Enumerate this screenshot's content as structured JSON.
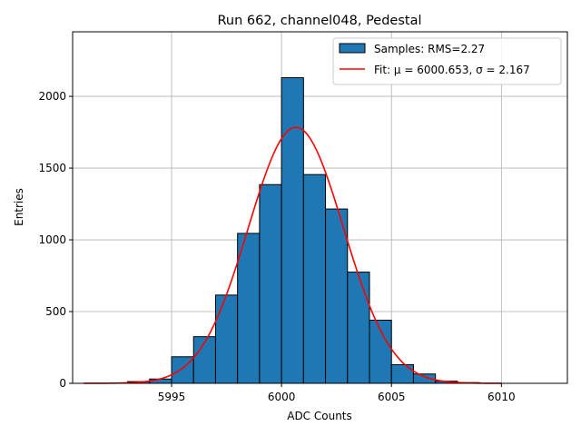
{
  "chart_data": {
    "type": "bar",
    "title": "Run 662, channel048, Pedestal",
    "xlabel": "ADC Counts",
    "ylabel": "Entries",
    "xlim": [
      5990.5,
      6013.0
    ],
    "ylim": [
      0,
      2450
    ],
    "xticks": [
      5995,
      6000,
      6005,
      6010
    ],
    "yticks": [
      0,
      500,
      1000,
      1500,
      2000
    ],
    "grid": true,
    "legend_position": "top-right",
    "bins": {
      "edges": [
        5993,
        5994,
        5995,
        5996,
        5997,
        5998,
        5999,
        6000,
        6001,
        6002,
        6003,
        6004,
        6005,
        6006,
        6007,
        6008,
        6009
      ],
      "counts": [
        12,
        30,
        185,
        325,
        615,
        1045,
        1385,
        2130,
        1455,
        1215,
        775,
        440,
        130,
        65,
        15,
        5
      ]
    },
    "fit": {
      "mu": 6000.653,
      "sigma": 2.167,
      "amplitude": 1785,
      "x_range": [
        5991,
        6010
      ]
    },
    "series": [
      {
        "name": "Samples: RMS=2.27",
        "kind": "histogram",
        "color": "#1f77b4"
      },
      {
        "name": "Fit: μ = 6000.653, σ = 2.167",
        "kind": "line",
        "color": "#ff0000"
      }
    ]
  }
}
